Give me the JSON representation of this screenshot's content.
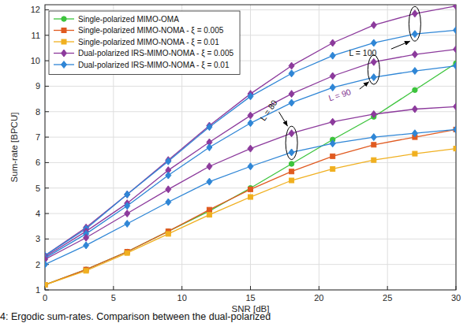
{
  "chart_data": {
    "type": "line",
    "x_label": "SNR [dB]",
    "y_label": "Sum-rate [BPCU]",
    "caption": "4: Ergodic sum-rates. Comparison between the dual-polarized",
    "x": [
      0,
      3,
      6,
      9,
      12,
      15,
      18,
      21,
      24,
      27,
      30
    ],
    "xlim": [
      0,
      30
    ],
    "xticks": [
      0,
      5,
      10,
      15,
      20,
      25,
      30
    ],
    "ylim": [
      1,
      12.2
    ],
    "yticks": [
      1,
      2,
      3,
      4,
      5,
      6,
      7,
      8,
      9,
      10,
      11,
      12
    ],
    "grid": true,
    "legend": "top-left",
    "series": [
      {
        "name": "Single-polarized MIMO-OMA",
        "color": "#3cc43c",
        "marker": "circle",
        "values": [
          1.2,
          1.8,
          2.5,
          3.3,
          4.1,
          5.0,
          5.95,
          6.9,
          7.8,
          8.85,
          9.9
        ]
      },
      {
        "name": "Single-polarized MIMO-NOMA - ξ = 0.005",
        "color": "#e05a20",
        "marker": "square",
        "values": [
          1.2,
          1.8,
          2.5,
          3.3,
          4.15,
          4.95,
          5.65,
          6.25,
          6.7,
          7.0,
          7.3
        ]
      },
      {
        "name": "Single-polarized MIMO-NOMA - ξ = 0.01",
        "color": "#f0b020",
        "marker": "square",
        "values": [
          1.2,
          1.75,
          2.45,
          3.2,
          3.95,
          4.65,
          5.3,
          5.75,
          6.1,
          6.35,
          6.55
        ]
      },
      {
        "name": "Dual-polarized IRS-MIMO-NOMA - ξ = 0.005",
        "color": "#8c3a9c",
        "marker": "diamond",
        "values": [
          2.35,
          3.45,
          4.75,
          6.1,
          7.45,
          8.7,
          9.8,
          10.7,
          11.4,
          11.85,
          12.15
        ]
      },
      {
        "name": "Dual-polarized IRS-MIMO-NOMA - ξ = 0.01",
        "color": "#2f86d6",
        "marker": "diamond",
        "values": [
          2.35,
          3.4,
          4.75,
          6.05,
          7.4,
          8.6,
          9.5,
          10.2,
          10.7,
          11.05,
          11.2
        ]
      },
      {
        "name": "Dual-polarized IRS-MIMO-NOMA - ξ = 0.005",
        "color": "#8c3a9c",
        "marker": "diamond",
        "values": [
          2.3,
          3.3,
          4.4,
          5.7,
          6.8,
          7.85,
          8.7,
          9.4,
          9.95,
          10.25,
          10.45
        ]
      },
      {
        "name": "Dual-polarized IRS-MIMO-NOMA - ξ = 0.01",
        "color": "#2f86d6",
        "marker": "diamond",
        "values": [
          2.25,
          3.2,
          4.3,
          5.5,
          6.6,
          7.55,
          8.35,
          8.95,
          9.35,
          9.6,
          9.8
        ]
      },
      {
        "name": "Dual-polarized IRS-MIMO-NOMA - ξ = 0.005",
        "color": "#8c3a9c",
        "marker": "diamond",
        "values": [
          2.2,
          3.05,
          4.0,
          4.95,
          5.85,
          6.55,
          7.15,
          7.6,
          7.9,
          8.1,
          8.2
        ]
      },
      {
        "name": "Dual-polarized IRS-MIMO-NOMA - ξ = 0.01",
        "color": "#2f86d6",
        "marker": "diamond",
        "values": [
          2.0,
          2.75,
          3.6,
          4.45,
          5.25,
          5.85,
          6.4,
          6.75,
          7.0,
          7.15,
          7.3
        ]
      }
    ],
    "annotations": [
      {
        "text": "L = 100",
        "x": 27,
        "series": [
          3,
          4
        ]
      },
      {
        "text": "L = 90",
        "x": 24,
        "series": [
          5,
          6
        ]
      },
      {
        "text": "L = 80",
        "x": 18,
        "series": [
          7,
          8
        ]
      }
    ]
  }
}
